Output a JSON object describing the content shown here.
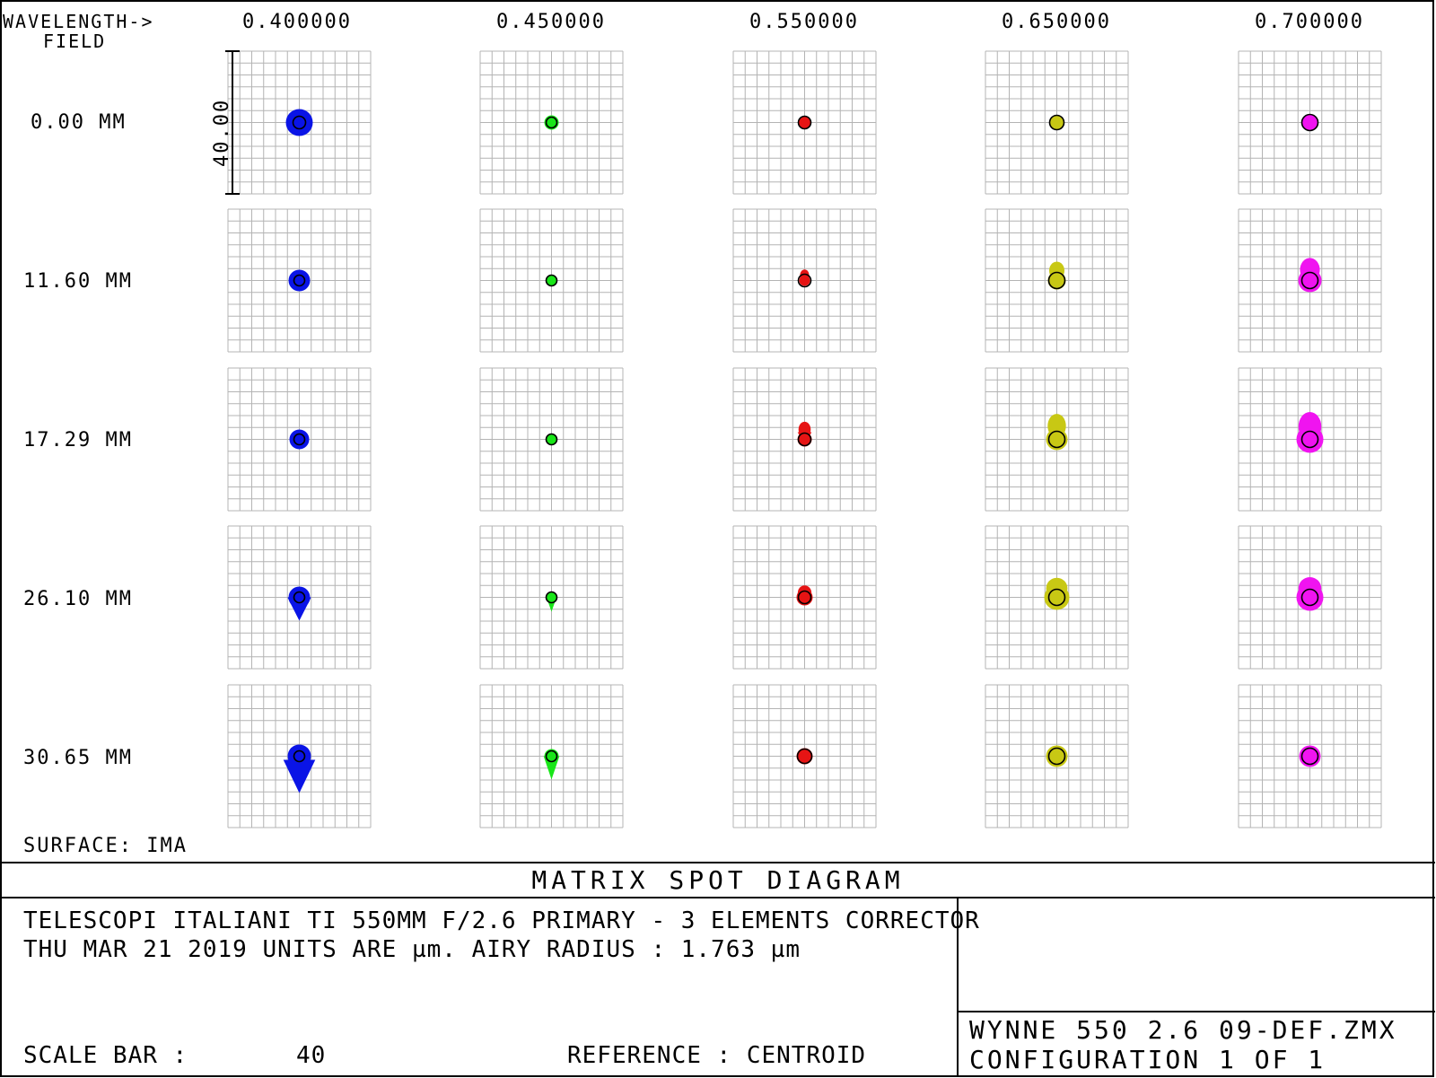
{
  "header": {
    "wavelength_label": "WAVELENGTH->",
    "field_label": "FIELD"
  },
  "wavelengths": [
    "0.400000",
    "0.450000",
    "0.550000",
    "0.650000",
    "0.700000"
  ],
  "fields": [
    "0.00 MM",
    "11.60 MM",
    "17.29 MM",
    "26.10 MM",
    "30.65 MM"
  ],
  "scale_label": "40.00",
  "surface": "SURFACE: IMA",
  "title": "MATRIX SPOT DIAGRAM",
  "info": {
    "line1": "TELESCOPI ITALIANI TI  550MM  F/2.6 PRIMARY -  3 ELEMENTS CORRECTOR",
    "line2": "THU MAR 21 2019  UNITS ARE µm.  AIRY RADIUS : 1.763 µm",
    "scale_bar_label": "SCALE BAR  :",
    "scale_bar_value": "40",
    "reference": "REFERENCE  : CENTROID"
  },
  "file": {
    "name": "WYNNE 550 2.6 09-DEF.ZMX",
    "config": "CONFIGURATION 1 OF 1"
  },
  "colors": {
    "wavelengths": [
      "#0a14e6",
      "#19e619",
      "#e61414",
      "#c8c814",
      "#f014f0"
    ],
    "grid": "#b4b4b4",
    "frame": "#000000"
  }
}
